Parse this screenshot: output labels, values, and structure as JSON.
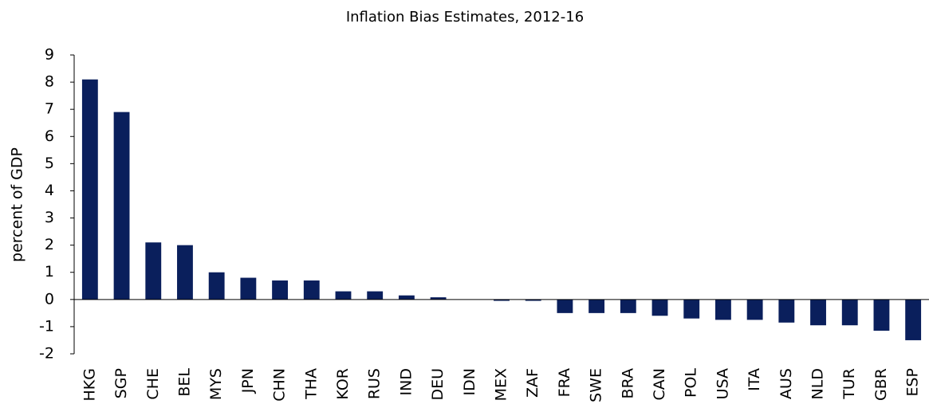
{
  "chart_data": {
    "type": "bar",
    "title": "Inflation  Bias Estimates, 2012-16",
    "y_label": "percent of GDP",
    "categories": [
      "HKG",
      "SGP",
      "CHE",
      "BEL",
      "MYS",
      "JPN",
      "CHN",
      "THA",
      "KOR",
      "RUS",
      "IND",
      "DEU",
      "IDN",
      "MEX",
      "ZAF",
      "FRA",
      "SWE",
      "BRA",
      "CAN",
      "POL",
      "USA",
      "ITA",
      "AUS",
      "NLD",
      "TUR",
      "GBR",
      "ESP"
    ],
    "values": [
      8.1,
      6.9,
      2.1,
      2.0,
      1.0,
      0.8,
      0.7,
      0.7,
      0.3,
      0.3,
      0.15,
      0.08,
      0,
      -0.05,
      -0.05,
      -0.5,
      -0.5,
      -0.5,
      -0.6,
      -0.7,
      -0.75,
      -0.75,
      -0.85,
      -0.95,
      -0.95,
      -1.15,
      -1.5
    ],
    "color": "#0a1f5c",
    "ylim": [
      -2,
      9
    ],
    "yticks": [
      -2,
      -1,
      0,
      1,
      2,
      3,
      4,
      5,
      6,
      7,
      8,
      9
    ],
    "grid": false
  }
}
